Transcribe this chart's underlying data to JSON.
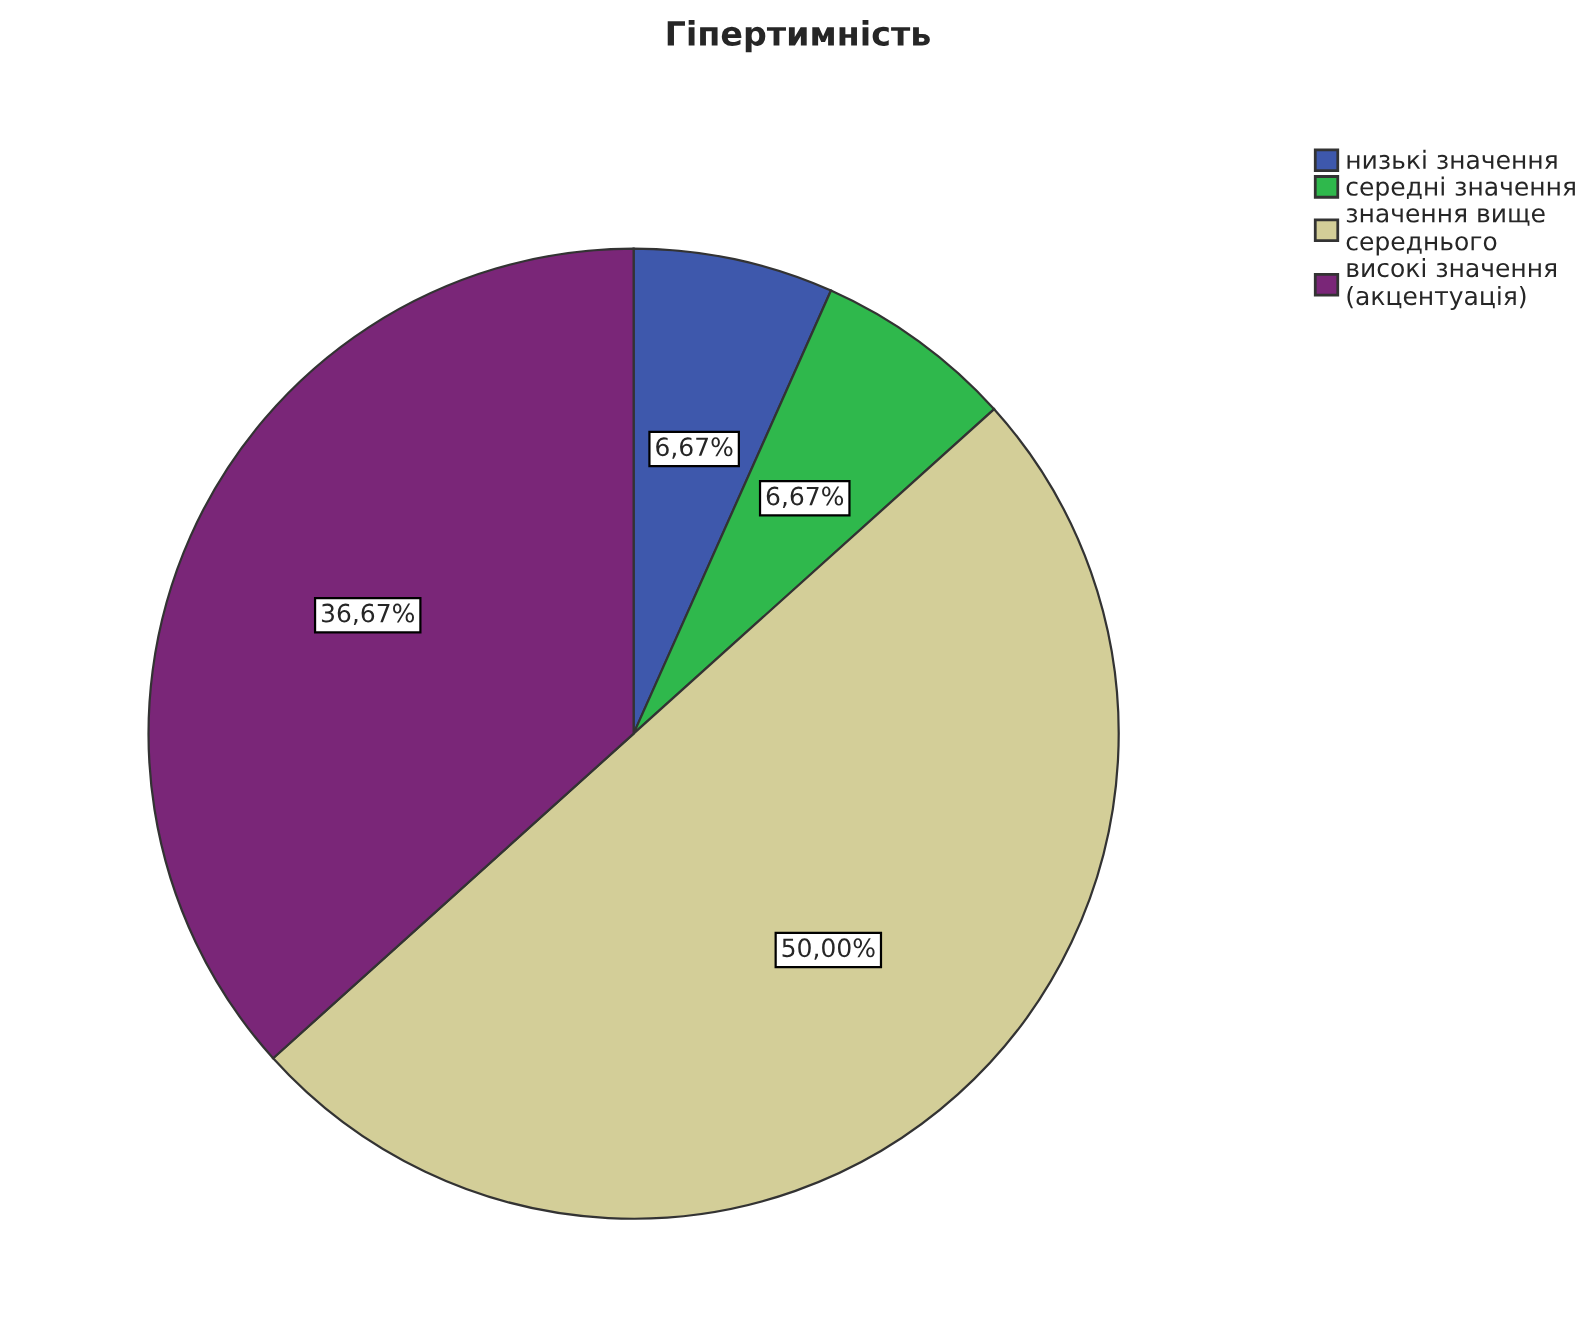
{
  "chart_data": {
    "type": "pie",
    "title": "Гіпертимність",
    "categories": [
      "низькі значення",
      "середні значення",
      "значення вище\nсереднього",
      "високі значення\n(акцентуація)"
    ],
    "values": [
      6.67,
      6.67,
      50.0,
      36.67
    ],
    "colors": [
      "#3e58ac",
      "#2fb84c",
      "#d3ce98",
      "#7a2678"
    ],
    "value_labels": [
      "6,67%",
      "6,67%",
      "50,00%",
      "36,67%"
    ],
    "legend": "top right"
  }
}
